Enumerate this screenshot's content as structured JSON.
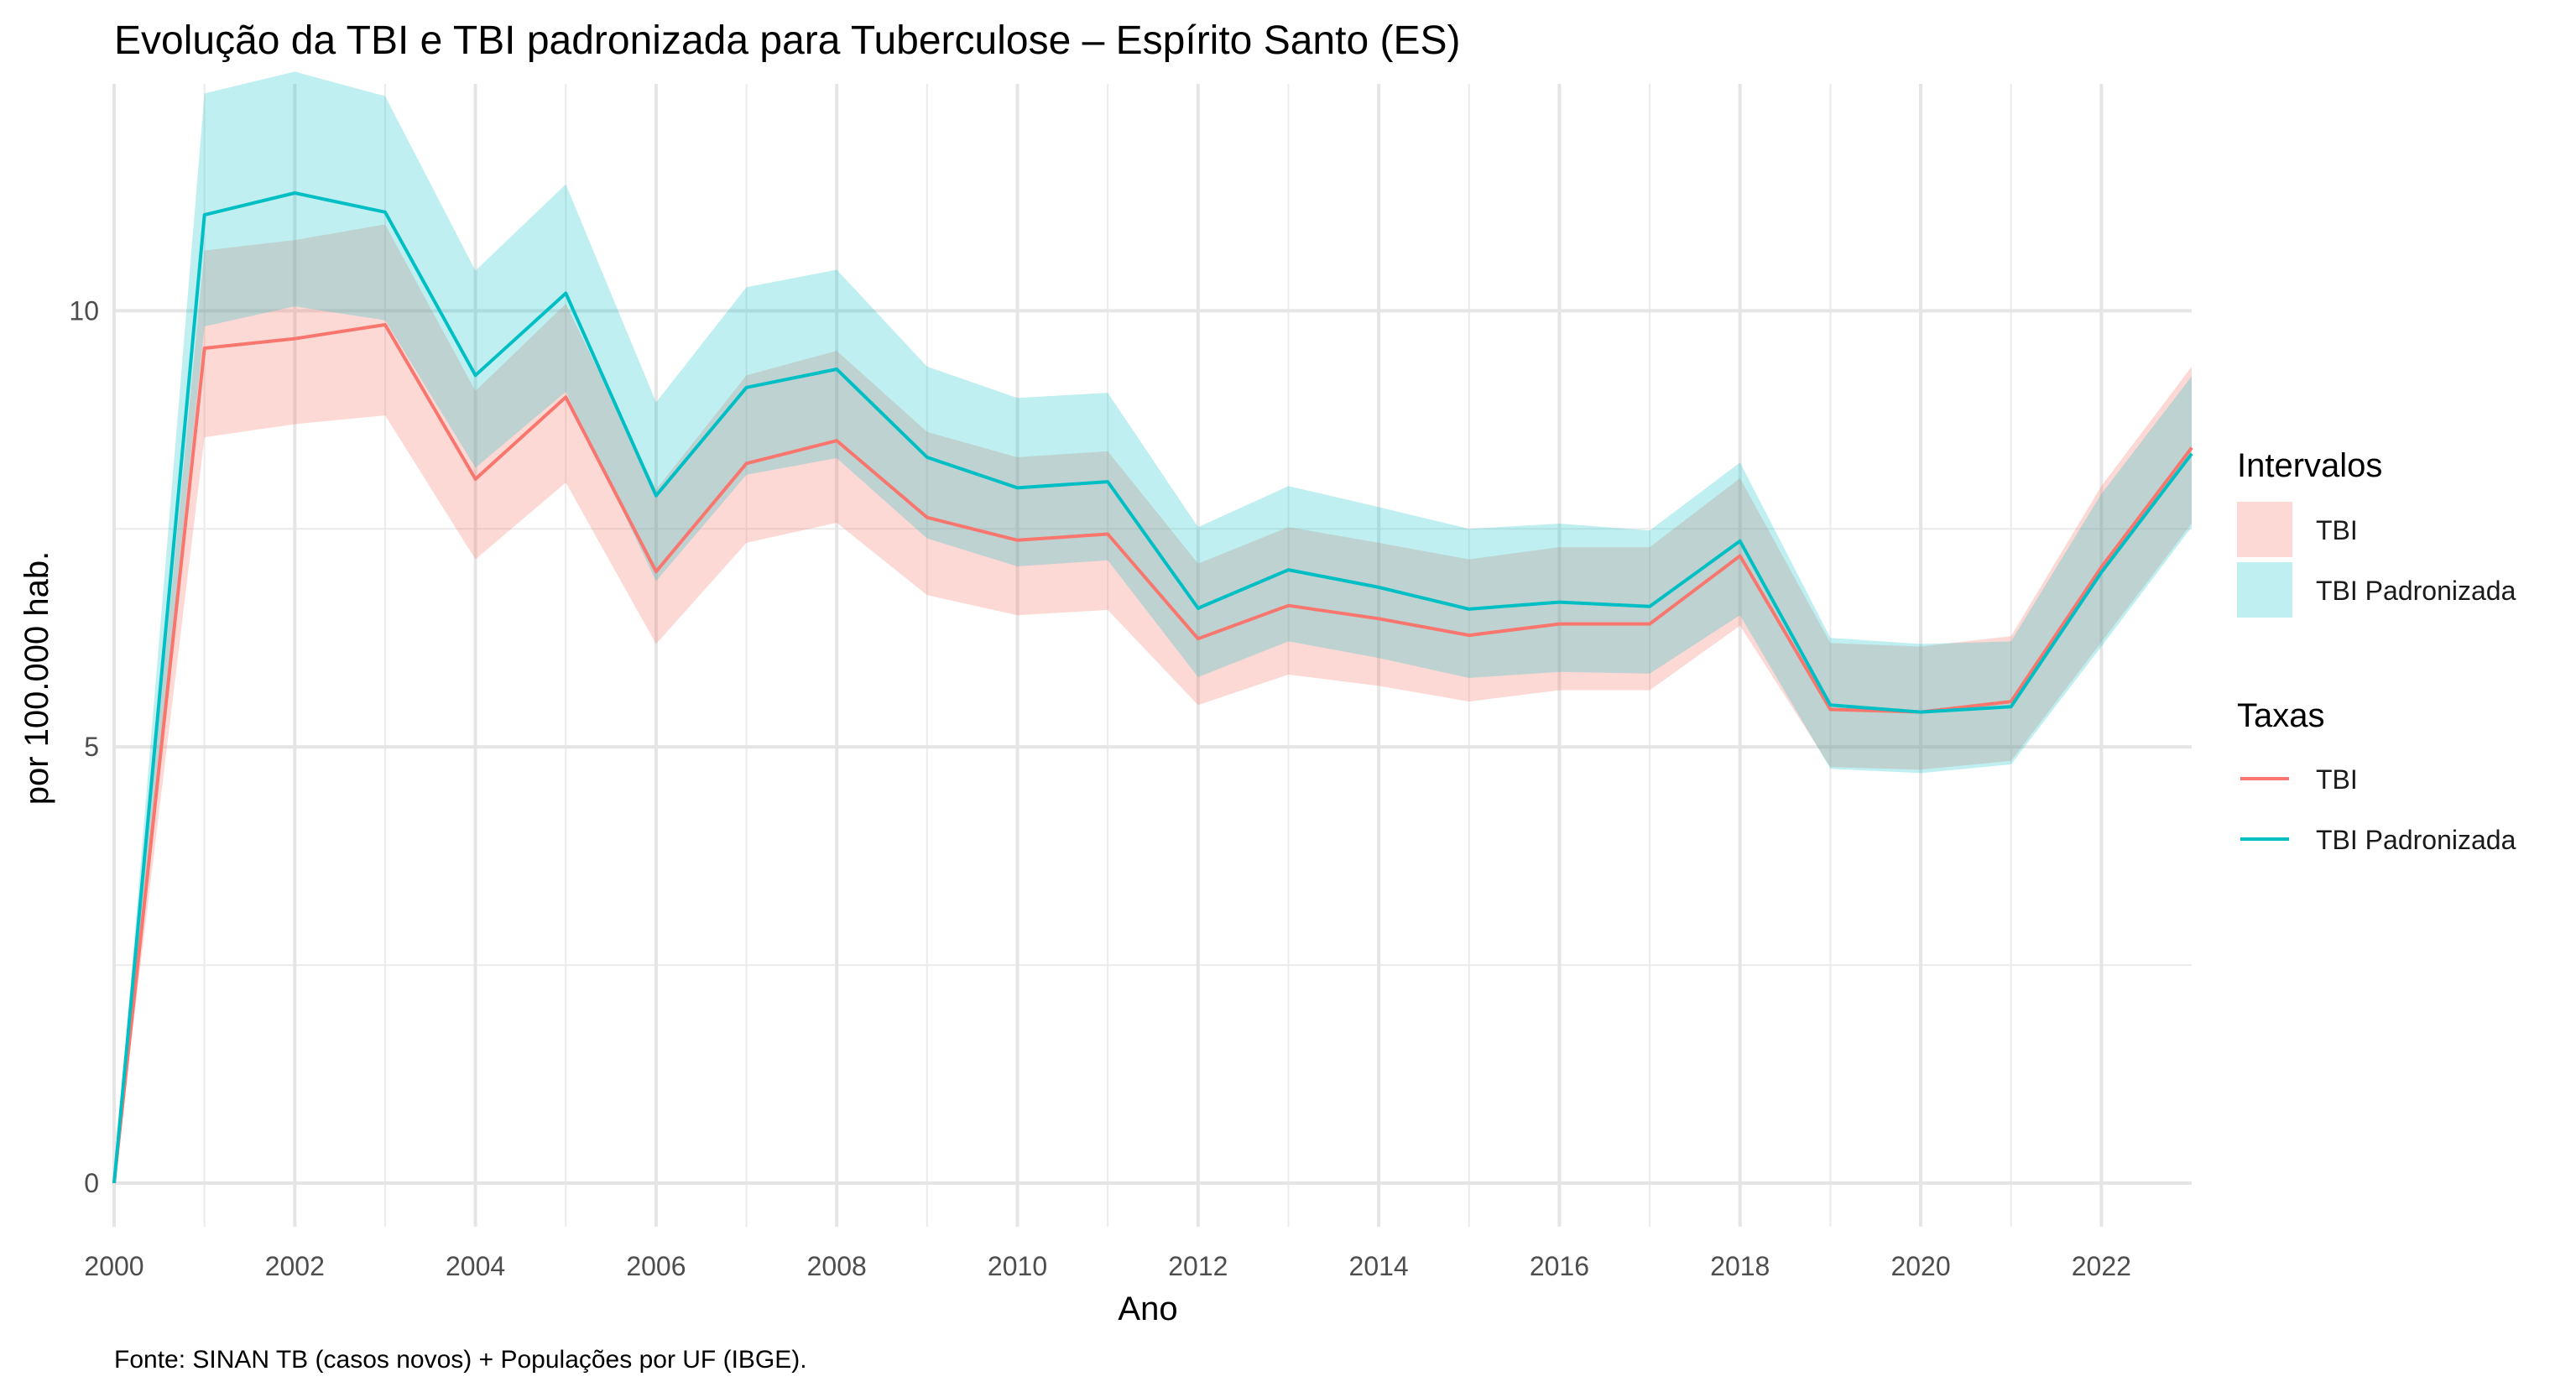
{
  "chart_data": {
    "type": "line",
    "title": "Evolução da TBI e TBI padronizada para Tuberculose – Espírito Santo (ES)",
    "xlabel": "Ano",
    "ylabel": "por 100.000 hab.",
    "caption": "Fonte: SINAN TB (casos novos) + Populações por UF (IBGE).",
    "xlim": [
      2000,
      2023
    ],
    "ylim": [
      -0.5,
      12.6
    ],
    "x_ticks": [
      2000,
      2002,
      2004,
      2006,
      2008,
      2010,
      2012,
      2014,
      2016,
      2018,
      2020,
      2022
    ],
    "x_tick_labels": [
      "2000",
      "2002",
      "2004",
      "2006",
      "2008",
      "2010",
      "2012",
      "2014",
      "2016",
      "2018",
      "2020",
      "2022"
    ],
    "y_ticks": [
      0,
      5,
      10
    ],
    "y_tick_labels": [
      "0",
      "5",
      "10"
    ],
    "grid": true,
    "x": [
      2000,
      2001,
      2002,
      2003,
      2004,
      2005,
      2006,
      2007,
      2008,
      2009,
      2010,
      2011,
      2012,
      2013,
      2014,
      2015,
      2016,
      2017,
      2018,
      2019,
      2020,
      2021,
      2022,
      2023
    ],
    "series": [
      {
        "name": "TBI",
        "color": "#F8766D",
        "values": [
          0,
          9.57,
          9.68,
          9.84,
          8.07,
          9.01,
          7.01,
          8.25,
          8.51,
          7.63,
          7.37,
          7.44,
          6.24,
          6.62,
          6.47,
          6.28,
          6.41,
          6.41,
          7.19,
          5.43,
          5.4,
          5.52,
          7.06,
          8.43
        ],
        "lower": [
          0,
          8.55,
          8.7,
          8.8,
          7.15,
          8.03,
          6.18,
          7.34,
          7.57,
          6.74,
          6.51,
          6.57,
          5.48,
          5.83,
          5.7,
          5.52,
          5.65,
          5.65,
          6.39,
          4.77,
          4.74,
          4.84,
          6.2,
          7.56
        ],
        "upper": [
          0,
          10.69,
          10.81,
          10.99,
          9.08,
          10.08,
          7.95,
          9.26,
          9.54,
          8.61,
          8.32,
          8.39,
          7.1,
          7.52,
          7.34,
          7.15,
          7.29,
          7.29,
          8.08,
          6.19,
          6.15,
          6.27,
          7.99,
          9.36
        ]
      },
      {
        "name": "TBI Padronizada",
        "color": "#00BFC4",
        "values": [
          0,
          11.1,
          11.35,
          11.13,
          9.26,
          10.2,
          7.88,
          9.12,
          9.33,
          8.32,
          7.97,
          8.04,
          6.59,
          7.03,
          6.83,
          6.58,
          6.66,
          6.61,
          7.36,
          5.48,
          5.4,
          5.46,
          7.0,
          8.36
        ],
        "lower": [
          0,
          9.82,
          10.05,
          9.89,
          8.2,
          9.07,
          6.9,
          8.12,
          8.31,
          7.39,
          7.07,
          7.14,
          5.8,
          6.21,
          6.02,
          5.79,
          5.86,
          5.84,
          6.51,
          4.75,
          4.7,
          4.8,
          6.15,
          7.52
        ],
        "upper": [
          0,
          12.49,
          12.74,
          12.46,
          10.46,
          11.45,
          8.95,
          10.27,
          10.47,
          9.36,
          9.0,
          9.06,
          7.52,
          7.99,
          7.75,
          7.5,
          7.56,
          7.48,
          8.26,
          6.25,
          6.18,
          6.21,
          7.9,
          9.25
        ]
      }
    ],
    "legend": {
      "placement": "right",
      "fill_title": "Intervalos",
      "line_title": "Taxas",
      "fill_items": [
        "TBI",
        "TBI Padronizada"
      ],
      "line_items": [
        "TBI",
        "TBI Padronizada"
      ]
    }
  }
}
